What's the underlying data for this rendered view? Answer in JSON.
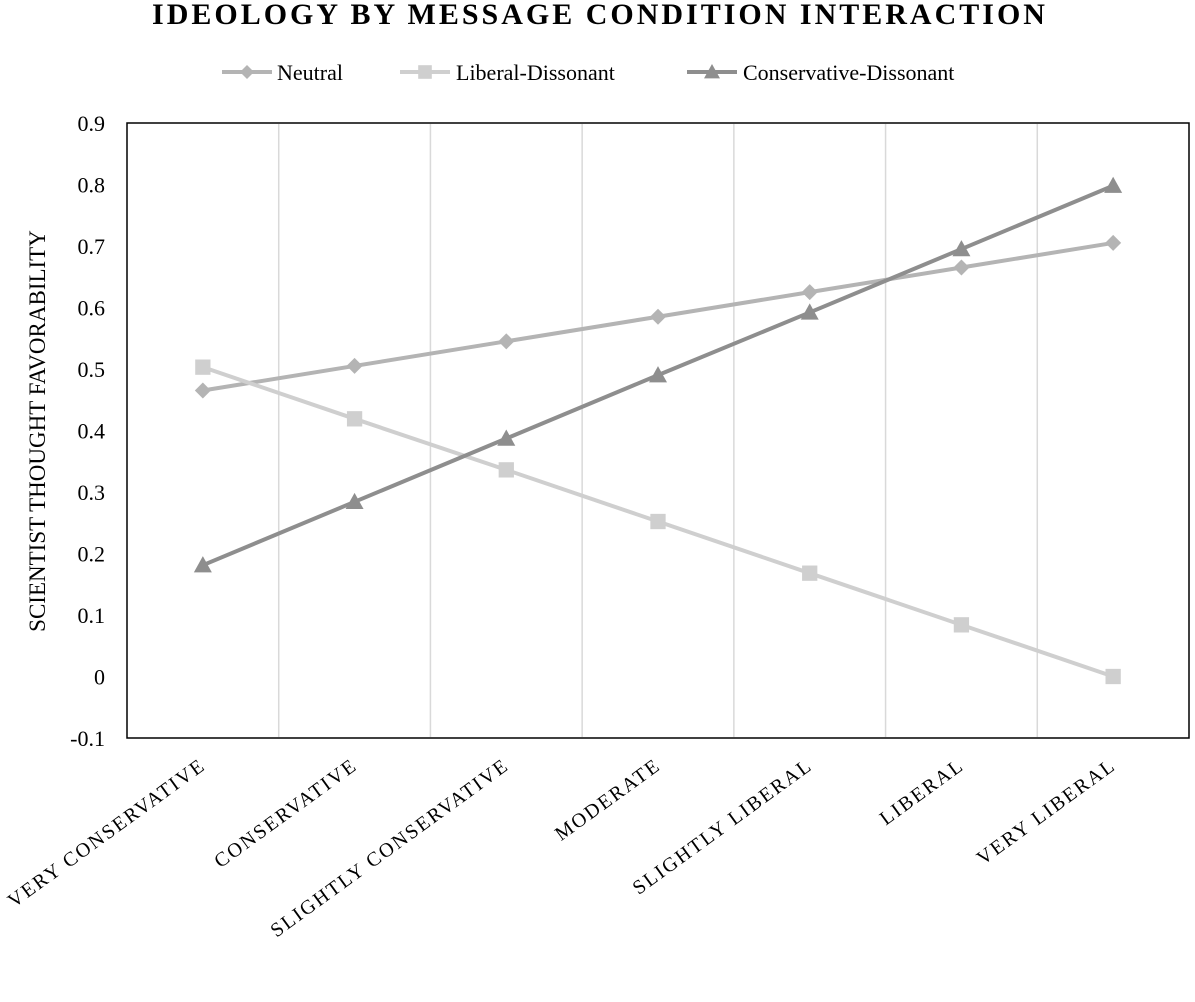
{
  "chart_data": {
    "type": "line",
    "title": "IDEOLOGY BY MESSAGE CONDITION INTERACTION",
    "xlabel": "",
    "ylabel": "SCIENTIST THOUGHT FAVORABILITY",
    "categories": [
      "VERY CONSERVATIVE",
      "CONSERVATIVE",
      "SLIGHTLY CONSERVATIVE",
      "MODERATE",
      "SLIGHTLY LIBERAL",
      "LIBERAL",
      "VERY LIBERAL"
    ],
    "ylim": [
      -0.1,
      0.9
    ],
    "yticks": [
      "0.9",
      "0.8",
      "0.7",
      "0.6",
      "0.5",
      "0.4",
      "0.3",
      "0.2",
      "0.1",
      "0",
      "-0.1"
    ],
    "grid": "vertical",
    "legend_position": "top",
    "series": [
      {
        "name": "Neutral",
        "marker": "diamond",
        "color": "#b4b4b4",
        "values": [
          0.465,
          0.505,
          0.545,
          0.585,
          0.625,
          0.665,
          0.705
        ]
      },
      {
        "name": "Liberal-Dissonant",
        "marker": "square",
        "color": "#cfcfcf",
        "values": [
          0.503,
          0.419,
          0.336,
          0.252,
          0.168,
          0.084,
          0.0
        ]
      },
      {
        "name": "Conservative-Dissonant",
        "marker": "triangle",
        "color": "#8e8e8e",
        "values": [
          0.181,
          0.284,
          0.387,
          0.49,
          0.592,
          0.695,
          0.798
        ]
      }
    ]
  }
}
